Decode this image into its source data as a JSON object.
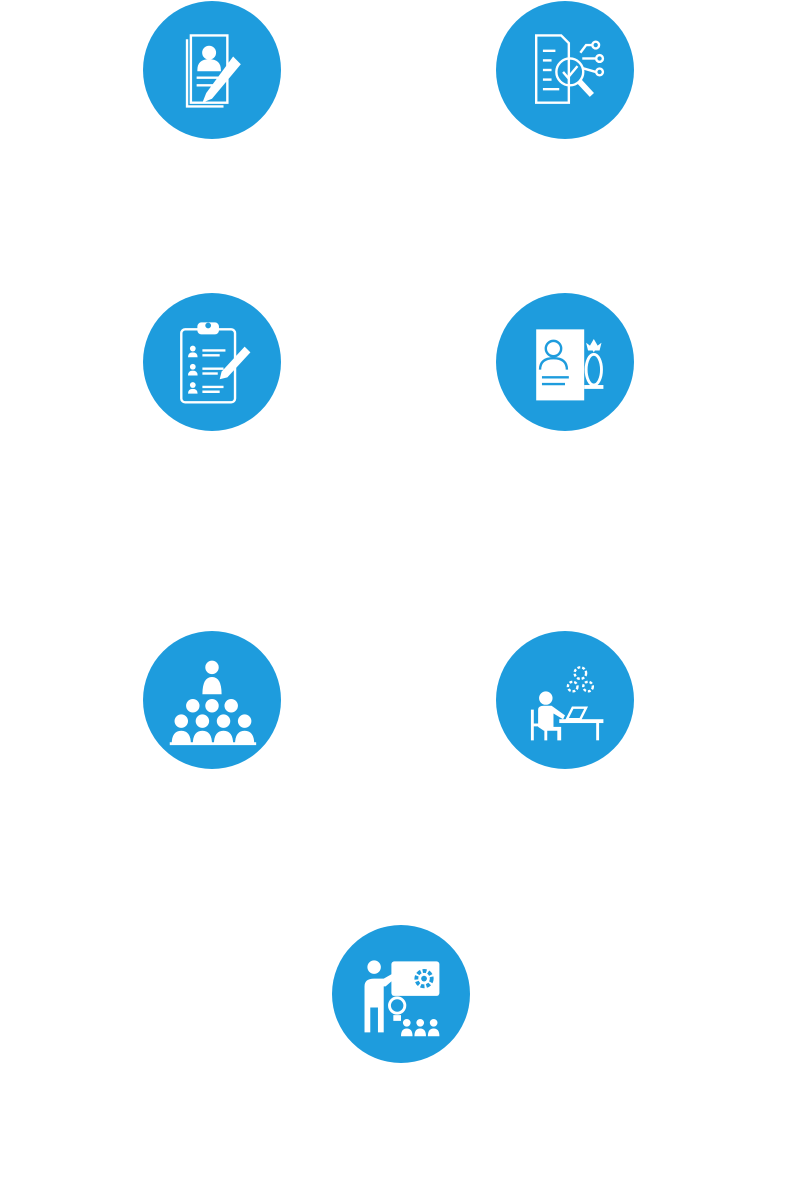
{
  "colors": {
    "circle": "#1e9cdd",
    "glyph": "#ffffff",
    "background": "#ffffff"
  },
  "icons": [
    {
      "name": "resume-writing-icon"
    },
    {
      "name": "document-analysis-icon"
    },
    {
      "name": "candidate-checklist-icon"
    },
    {
      "name": "profile-award-icon"
    },
    {
      "name": "audience-presentation-icon"
    },
    {
      "name": "desk-work-gears-icon"
    },
    {
      "name": "training-ideas-icon"
    }
  ]
}
